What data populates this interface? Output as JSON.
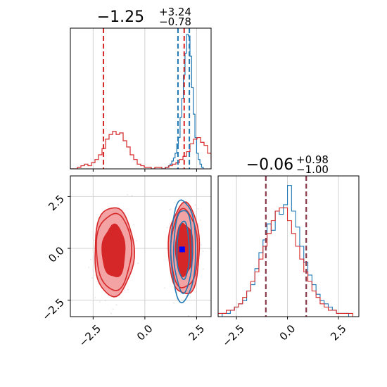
{
  "chart_data": {
    "type": "corner",
    "parameters": [
      "",
      ""
    ],
    "series": [
      {
        "name": "",
        "color": "#1f77b4"
      },
      {
        "name": "",
        "color": "#d62728"
      }
    ],
    "grid": true,
    "colors": {
      "blue": "#1f77b4",
      "red": "#d62728",
      "red_fill_outer": "#f4a3a4",
      "red_fill_inner": "#d62728",
      "dark_dash": "#8b3a4a",
      "marker_blue": "#0000ff"
    },
    "panels": [
      {
        "id": "hist1",
        "title": {
          "median": "−1.25",
          "plus": "+3.24",
          "minus": "−0.78"
        },
        "xlim": [
          -3.6,
          3.2
        ],
        "quantile_lines": [
          {
            "series": "red",
            "x": -2.0
          },
          {
            "series": "red",
            "x": 1.9
          },
          {
            "series": "blue",
            "x": 1.6
          },
          {
            "series": "blue",
            "x": 2.15
          }
        ]
      },
      {
        "id": "hist2",
        "title": {
          "median": "−0.06",
          "plus": "+0.98",
          "minus": "−1.00"
        },
        "xlim": [
          -3.4,
          3.5
        ],
        "x_ticks": [
          "−2.5",
          "0.0",
          "2.5"
        ],
        "x_tick_values": [
          -2.5,
          0.0,
          2.5
        ],
        "quantile_lines": [
          {
            "series": "both",
            "x": -1.06
          },
          {
            "series": "both",
            "x": 0.92
          }
        ]
      },
      {
        "id": "scatter",
        "xlim": [
          -3.6,
          3.2
        ],
        "ylim": [
          -3.3,
          3.5
        ],
        "x_ticks": [
          "−2.5",
          "0.0",
          "2.5"
        ],
        "x_tick_values": [
          -2.5,
          0.0,
          2.5
        ],
        "y_ticks": [
          "2.5",
          "0.0",
          "−2.5"
        ],
        "y_tick_values": [
          2.5,
          0.0,
          -2.5
        ],
        "markers": [
          {
            "series": "red",
            "x": -1.7,
            "y": -0.1
          },
          {
            "series": "red",
            "x": -1.2,
            "y": -0.1
          },
          {
            "series": "blue",
            "x": 1.8,
            "y": -0.05
          }
        ]
      }
    ],
    "red_hist_1": {
      "bin_start": -3.6,
      "bin_width": 0.17,
      "counts": [
        0,
        0,
        1,
        2,
        3,
        2,
        4,
        6,
        9,
        13,
        19,
        22,
        24,
        22,
        23,
        18,
        14,
        9,
        6,
        3,
        2,
        1,
        1,
        0,
        1,
        1,
        0,
        1,
        2,
        3,
        4,
        6,
        8,
        11,
        16,
        19,
        20,
        17,
        15,
        10,
        6,
        4,
        2,
        1
      ]
    },
    "blue_hist_1": {
      "bin_start": 0.9,
      "bin_width": 0.08,
      "counts": [
        0,
        1,
        1,
        2,
        3,
        5,
        7,
        10,
        16,
        20,
        33,
        45,
        60,
        74,
        86,
        85,
        72,
        52,
        35,
        20,
        10,
        6,
        3,
        1
      ]
    },
    "red_hist_2": {
      "bin_start": -3.4,
      "bin_width": 0.2,
      "counts": [
        1,
        1,
        2,
        2,
        3,
        4,
        6,
        8,
        11,
        14,
        18,
        22,
        26,
        30,
        33,
        34,
        34,
        30,
        26,
        22,
        18,
        14,
        11,
        8,
        6,
        4,
        3,
        2,
        2,
        1,
        1,
        1,
        1,
        0
      ]
    },
    "blue_hist_2": {
      "bin_start": -3.4,
      "bin_width": 0.2,
      "counts": [
        0,
        1,
        1,
        2,
        3,
        4,
        5,
        8,
        10,
        15,
        20,
        24,
        29,
        27,
        33,
        32,
        35,
        41,
        33,
        28,
        22,
        17,
        13,
        10,
        7,
        5,
        4,
        3,
        2,
        1,
        1,
        1,
        0,
        0
      ]
    },
    "contours": {
      "red_left": {
        "cx": -1.5,
        "cy": -0.15,
        "rx": [
          0.95,
          0.85,
          0.55
        ],
        "ry": [
          2.15,
          1.85,
          1.25
        ]
      },
      "red_right": {
        "cx": 1.9,
        "cy": -0.05,
        "rx": [
          0.75,
          0.65,
          0.42
        ],
        "ry": [
          2.2,
          1.9,
          1.25
        ]
      },
      "blue_right": {
        "cx": 1.85,
        "cy": -0.1,
        "rx": [
          0.6,
          0.45,
          0.3
        ],
        "ry": [
          2.45,
          2.0,
          1.4
        ]
      }
    }
  }
}
